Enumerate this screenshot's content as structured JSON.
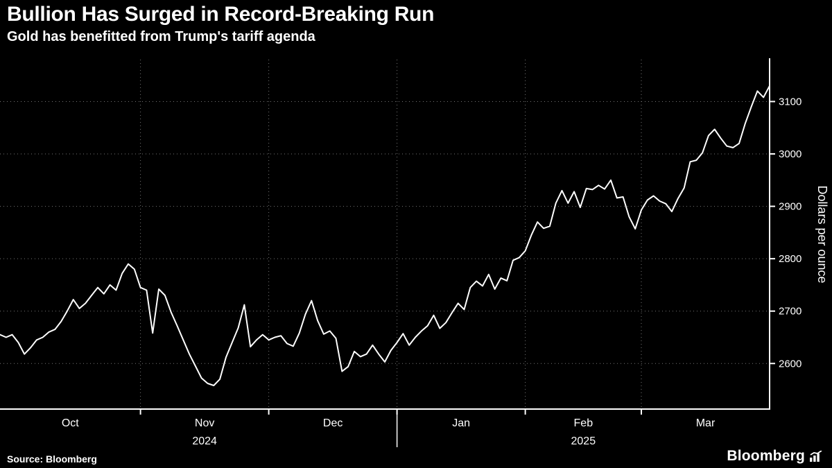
{
  "header": {
    "title": "Bullion Has Surged in Record-Breaking Run",
    "subtitle": "Gold has benefitted from Trump's tariff agenda"
  },
  "footer": {
    "source": "Source: Bloomberg",
    "brand": "Bloomberg"
  },
  "chart_data": {
    "type": "line",
    "title": "Bullion Has Surged in Record-Breaking Run",
    "subtitle": "Gold has benefitted from Trump's tariff agenda",
    "xlabel": "",
    "ylabel": "Dollars per ounce",
    "ylim": [
      2513,
      3180
    ],
    "yticks": [
      2600,
      2700,
      2800,
      2900,
      3000,
      3100
    ],
    "grid": "dotted",
    "legend": "none",
    "x_months": [
      {
        "label": "Oct",
        "start_index": 0
      },
      {
        "label": "Nov",
        "start_index": 23
      },
      {
        "label": "Dec",
        "start_index": 44
      },
      {
        "label": "Jan",
        "start_index": 65
      },
      {
        "label": "Feb",
        "start_index": 86
      },
      {
        "label": "Mar",
        "start_index": 105
      }
    ],
    "years": [
      {
        "label": "2024",
        "center_month": "Nov"
      },
      {
        "label": "2025",
        "center_month": "Feb"
      }
    ],
    "year_divider_month": "Jan",
    "series": [
      {
        "name": "Gold spot price (dollars per ounce)",
        "color": "#ffffff",
        "values": [
          2655,
          2650,
          2655,
          2640,
          2618,
          2630,
          2645,
          2650,
          2660,
          2665,
          2680,
          2700,
          2722,
          2705,
          2715,
          2730,
          2745,
          2733,
          2750,
          2740,
          2772,
          2790,
          2780,
          2745,
          2740,
          2658,
          2742,
          2730,
          2698,
          2672,
          2645,
          2618,
          2595,
          2572,
          2562,
          2558,
          2570,
          2612,
          2640,
          2668,
          2712,
          2632,
          2645,
          2655,
          2645,
          2650,
          2653,
          2638,
          2633,
          2658,
          2694,
          2720,
          2682,
          2656,
          2662,
          2648,
          2585,
          2594,
          2623,
          2613,
          2618,
          2635,
          2618,
          2603,
          2625,
          2640,
          2657,
          2635,
          2650,
          2662,
          2672,
          2692,
          2667,
          2678,
          2697,
          2715,
          2703,
          2745,
          2757,
          2748,
          2770,
          2742,
          2763,
          2758,
          2797,
          2802,
          2815,
          2845,
          2870,
          2858,
          2862,
          2906,
          2930,
          2906,
          2928,
          2898,
          2934,
          2932,
          2940,
          2933,
          2950,
          2916,
          2918,
          2880,
          2857,
          2893,
          2912,
          2920,
          2910,
          2905,
          2890,
          2915,
          2935,
          2985,
          2988,
          3002,
          3035,
          3047,
          3030,
          3015,
          3012,
          3020,
          3058,
          3090,
          3120,
          3108,
          3130
        ]
      }
    ],
    "colors": {
      "background": "#000000",
      "line": "#ffffff",
      "grid": "#787878",
      "axis": "#ffffff",
      "text": "#ffffff"
    }
  }
}
